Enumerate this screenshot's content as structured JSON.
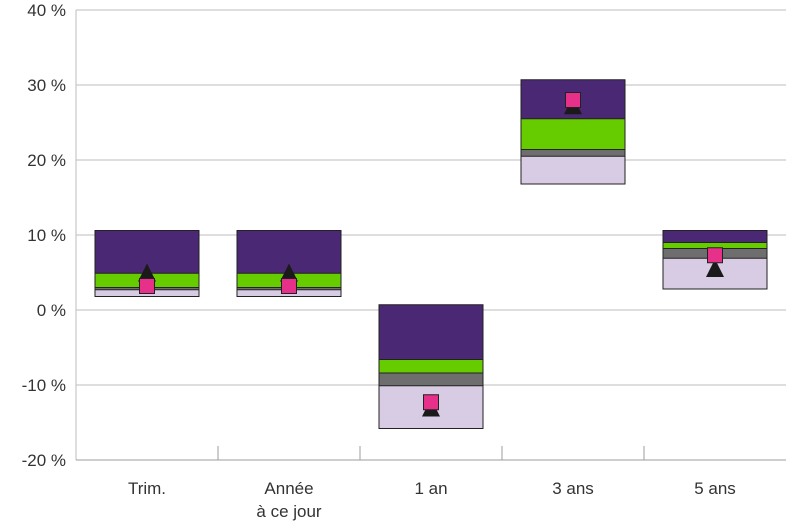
{
  "chart_data": {
    "type": "floating-bar",
    "title": "",
    "xlabel": "",
    "ylabel": "",
    "ylim": [
      -20,
      40
    ],
    "y_ticks": [
      {
        "value": 40,
        "label": "40 %"
      },
      {
        "value": 30,
        "label": "30 %"
      },
      {
        "value": 20,
        "label": "20 %"
      },
      {
        "value": 10,
        "label": "10 %"
      },
      {
        "value": 0,
        "label": "0 %"
      },
      {
        "value": -10,
        "label": "-10 %"
      },
      {
        "value": -20,
        "label": "-20 %"
      }
    ],
    "grid": true,
    "categories": [
      {
        "lines": [
          "Trim."
        ]
      },
      {
        "lines": [
          "Année",
          "à ce jour"
        ]
      },
      {
        "lines": [
          "1 an"
        ]
      },
      {
        "lines": [
          "3 ans"
        ]
      },
      {
        "lines": [
          "5 ans"
        ]
      }
    ],
    "bands": [
      {
        "color": "#d8cce4",
        "ranges": [
          [
            1.8,
            2.7
          ],
          [
            1.8,
            2.7
          ],
          [
            -15.8,
            -10.1
          ],
          [
            16.8,
            20.5
          ],
          [
            2.8,
            6.9
          ]
        ]
      },
      {
        "color": "#6e6e6e",
        "ranges": [
          [
            2.7,
            3.0
          ],
          [
            2.7,
            3.0
          ],
          [
            -10.1,
            -8.4
          ],
          [
            20.5,
            21.4
          ],
          [
            6.9,
            8.2
          ]
        ]
      },
      {
        "color": "#66cc00",
        "ranges": [
          [
            3.0,
            4.9
          ],
          [
            3.0,
            4.9
          ],
          [
            -8.4,
            -6.6
          ],
          [
            21.4,
            25.5
          ],
          [
            8.2,
            9.0
          ]
        ]
      },
      {
        "color": "#4b2873",
        "ranges": [
          [
            4.9,
            10.6
          ],
          [
            4.9,
            10.6
          ],
          [
            -6.6,
            0.7
          ],
          [
            25.5,
            30.7
          ],
          [
            9.0,
            10.6
          ]
        ]
      }
    ],
    "markers": [
      {
        "shape": "triangle",
        "color": "#1a1a1a",
        "values": [
          5.0,
          5.0,
          -13.0,
          27.3,
          5.6
        ]
      },
      {
        "shape": "square",
        "color": "#e6308a",
        "values": [
          3.2,
          3.2,
          -12.3,
          28.0,
          7.3
        ]
      }
    ]
  }
}
